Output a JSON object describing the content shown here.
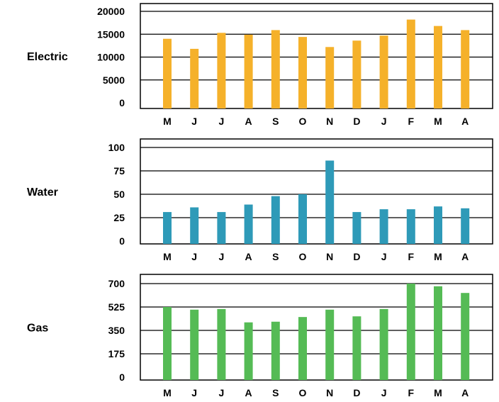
{
  "chart_data": [
    {
      "type": "bar",
      "row_label": "Electric",
      "color": "#F5B12A",
      "categories": [
        "M",
        "J",
        "J",
        "A",
        "S",
        "O",
        "N",
        "D",
        "J",
        "F",
        "M",
        "A"
      ],
      "values": [
        14000,
        11800,
        15300,
        14900,
        15900,
        14400,
        12200,
        13600,
        14700,
        18200,
        16800,
        15900
      ],
      "ylim": [
        0,
        20000
      ],
      "yticks": [
        0,
        5000,
        10000,
        15000,
        20000
      ],
      "ytick_labels": [
        "0",
        "5000",
        "10000",
        "15000",
        "20000"
      ],
      "grid": true
    },
    {
      "type": "bar",
      "row_label": "Water",
      "color": "#2E9AB8",
      "categories": [
        "M",
        "J",
        "J",
        "A",
        "S",
        "O",
        "N",
        "D",
        "J",
        "F",
        "M",
        "A"
      ],
      "values": [
        31,
        36,
        31,
        39,
        48,
        50,
        86,
        31,
        34,
        34,
        37,
        35
      ],
      "ylim": [
        0,
        100
      ],
      "yticks": [
        0,
        25,
        50,
        75,
        100
      ],
      "ytick_labels": [
        "0",
        "25",
        "50",
        "75",
        "100"
      ],
      "grid": true
    },
    {
      "type": "bar",
      "row_label": "Gas",
      "color": "#55BB55",
      "categories": [
        "M",
        "J",
        "J",
        "A",
        "S",
        "O",
        "N",
        "D",
        "J",
        "F",
        "M",
        "A"
      ],
      "values": [
        525,
        505,
        510,
        410,
        415,
        450,
        505,
        455,
        510,
        700,
        680,
        630
      ],
      "ylim": [
        0,
        700
      ],
      "yticks": [
        0,
        175,
        350,
        525,
        700
      ],
      "ytick_labels": [
        "0",
        "175",
        "350",
        "525",
        "700"
      ],
      "grid": true
    }
  ]
}
